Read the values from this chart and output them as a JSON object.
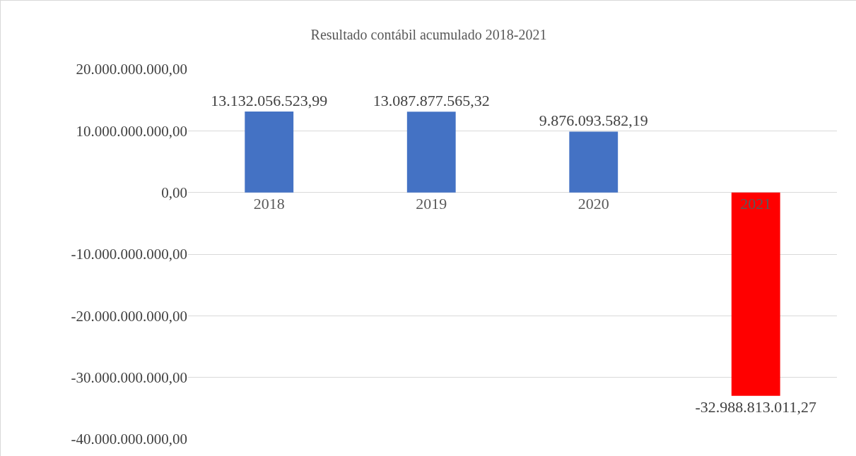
{
  "chart_data": {
    "type": "bar",
    "title": "Resultado contábil acumulado 2018-2021",
    "categories": [
      "2018",
      "2019",
      "2020",
      "2021"
    ],
    "values": [
      13132056523.99,
      13087877565.32,
      9876093582.19,
      -32988813011.27
    ],
    "colors": [
      "#4472c4",
      "#4472c4",
      "#4472c4",
      "#ff0000"
    ],
    "value_labels": [
      "13.132.056.523,99",
      "13.087.877.565,32",
      "9.876.093.582,19",
      "-32.988.813.011,27"
    ],
    "ylim": [
      -40000000000,
      20000000000
    ],
    "yticks": [
      {
        "value": -40000000000,
        "label": "-40.000.000.000,00"
      },
      {
        "value": -30000000000,
        "label": "-30.000.000.000,00"
      },
      {
        "value": -20000000000,
        "label": "-20.000.000.000,00"
      },
      {
        "value": -10000000000,
        "label": "-10.000.000.000,00"
      },
      {
        "value": 0,
        "label": "0,00"
      },
      {
        "value": 10000000000,
        "label": "10.000.000.000,00"
      },
      {
        "value": 20000000000,
        "label": "20.000.000.000,00"
      }
    ],
    "grid": "y"
  }
}
